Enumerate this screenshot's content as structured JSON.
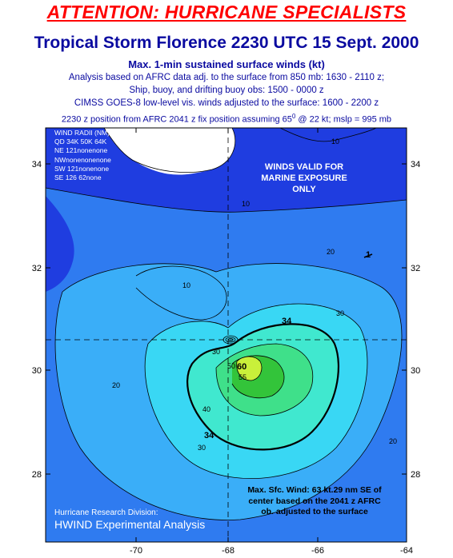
{
  "header": {
    "attention": "ATTENTION: HURRICANE SPECIALISTS",
    "title": "Tropical Storm Florence 2230 UTC 15 Sept. 2000",
    "subtitle": "Max. 1-min sustained surface winds (kt)",
    "note1": "Analysis based on AFRC data adj. to the surface from 850 mb: 1630 - 2110 z;",
    "note2": "Ship, buoy, and drifting buoy obs: 1500 - 0000 z",
    "note3": "CIMSS GOES-8 low-level vis. winds adjusted to the surface: 1600 - 2200 z",
    "note4_pre": "2230 z position from AFRC 2041 z fix position assuming 65",
    "note4_sup": "0",
    "note4_post": " @ 22 kt; mslp = 995 mb"
  },
  "wind_radii": {
    "title": "WIND RADII (NM)",
    "header": "QD 34K 50K 64K",
    "rows": [
      "NE 121nonenone",
      "NWnonenonenone",
      "SW 121nonenone",
      "SE 126  62none"
    ]
  },
  "marine_notice": [
    "WINDS VALID FOR",
    "MARINE EXPOSURE",
    "ONLY"
  ],
  "max_wind_note": [
    "Max. Sfc. Wind: 63 kt.29 nm SE of",
    "center based on the 2041 z AFRC",
    "ob. adjusted to the surface"
  ],
  "credits": {
    "division": "Hurricane Research Division:",
    "product": "HWIND Experimental Analysis"
  },
  "axes": {
    "x_ticks": [
      "-70",
      "-68",
      "-66",
      "-64"
    ],
    "y_ticks": [
      "34",
      "32",
      "30",
      "28"
    ]
  },
  "contour_labels": {
    "c10a": "10",
    "c10b": "10",
    "c10c": "10",
    "c20a": "20",
    "c20b": "20",
    "c20c": "20",
    "c30a": "30",
    "c30b": "30",
    "c30c": "30",
    "c34a": "34",
    "c34b": "34",
    "c40": "40",
    "c50": "50",
    "c55": "55",
    "c60": "60",
    "c1": "1"
  },
  "colors": {
    "deep_blue": "#1f3de0",
    "mid_blue": "#2f7bf0",
    "light_blue": "#3aaef8",
    "cyan": "#39d7f4",
    "aqua": "#40e8cf",
    "teal_green": "#3fe08a",
    "green": "#33c43a",
    "yellow_green": "#c9f03a",
    "title_blue": "#0a0aa0",
    "attention_red": "#ff0000"
  }
}
